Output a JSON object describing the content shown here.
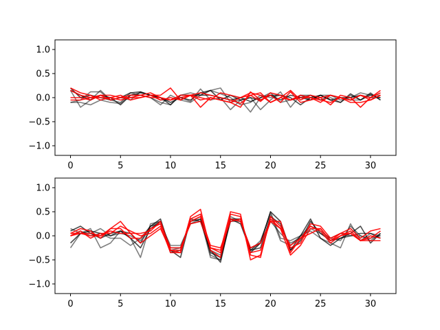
{
  "chart_data": [
    {
      "type": "line",
      "xlim": [
        -1.55,
        32.55
      ],
      "ylim": [
        -1.2,
        1.2
      ],
      "xticks": [
        0,
        5,
        10,
        15,
        20,
        25,
        30
      ],
      "yticks": [
        -1.0,
        -0.5,
        0.0,
        0.5,
        1.0
      ],
      "xtick_labels": [
        "0",
        "5",
        "10",
        "15",
        "20",
        "25",
        "30"
      ],
      "ytick_labels": [
        "−1.0",
        "−0.5",
        "0.0",
        "0.5",
        "1.0"
      ],
      "grid": false,
      "series": [
        {
          "color": "#000000",
          "alpha": 0.5,
          "values": [
            0.15,
            -0.2,
            -0.05,
            0.15,
            -0.05,
            -0.1,
            0.1,
            0.05,
            0.0,
            -0.1,
            -0.15,
            0.05,
            0.1,
            0.05,
            0.15,
            0.2,
            -0.1,
            -0.05,
            -0.3,
            0.0,
            0.1,
            -0.1,
            -0.05,
            0.0,
            0.05,
            -0.05,
            0.0,
            -0.1,
            0.05,
            -0.05,
            0.1,
            -0.05
          ]
        },
        {
          "color": "#000000",
          "alpha": 0.5,
          "values": [
            -0.1,
            -0.05,
            0.12,
            0.12,
            -0.05,
            0.0,
            -0.05,
            0.12,
            0.05,
            -0.05,
            -0.05,
            0.0,
            -0.08,
            0.18,
            -0.05,
            0.0,
            -0.25,
            -0.05,
            0.0,
            -0.25,
            -0.05,
            0.12,
            -0.2,
            0.05,
            0.05,
            -0.05,
            0.05,
            -0.05,
            0.0,
            0.1,
            0.05,
            0.05
          ]
        },
        {
          "color": "#000000",
          "alpha": 0.5,
          "values": [
            -0.1,
            -0.1,
            -0.15,
            -0.05,
            -0.1,
            -0.12,
            0.05,
            0.05,
            0.0,
            -0.15,
            0.05,
            -0.05,
            -0.1,
            0.05,
            0.15,
            0.08,
            0.0,
            -0.15,
            -0.1,
            0.05,
            0.0,
            0.05,
            -0.05,
            0.05,
            -0.05,
            0.05,
            0.05,
            0.0,
            -0.05,
            -0.05,
            0.05,
            0.0
          ]
        },
        {
          "color": "#000000",
          "alpha": 0.7,
          "values": [
            0.2,
            0.0,
            0.05,
            0.0,
            -0.05,
            0.0,
            0.1,
            0.12,
            0.05,
            0.0,
            -0.15,
            0.05,
            0.05,
            0.05,
            0.05,
            0.0,
            -0.05,
            0.0,
            -0.08,
            0.0,
            0.05,
            -0.05,
            0.05,
            0.0,
            -0.05,
            0.05,
            -0.05,
            -0.1,
            0.08,
            -0.05,
            0.08,
            -0.05
          ]
        },
        {
          "color": "#000000",
          "alpha": 0.7,
          "values": [
            0.15,
            0.05,
            -0.05,
            0.05,
            0.0,
            -0.15,
            0.05,
            0.1,
            0.05,
            0.0,
            -0.1,
            0.0,
            -0.05,
            0.1,
            0.15,
            -0.05,
            0.05,
            -0.05,
            0.0,
            -0.05,
            0.05,
            0.05,
            0.0,
            -0.15,
            0.0,
            0.05,
            -0.05,
            0.0,
            0.0,
            0.05,
            0.0,
            0.0
          ]
        },
        {
          "color": "#ff0000",
          "alpha": 0.9,
          "values": [
            0.15,
            0.05,
            0.0,
            0.0,
            0.0,
            0.05,
            -0.05,
            0.0,
            0.05,
            0.05,
            0.2,
            -0.05,
            0.05,
            0.1,
            0.05,
            0.0,
            -0.05,
            -0.12,
            0.05,
            0.1,
            -0.1,
            0.0,
            0.15,
            -0.05,
            0.05,
            0.0,
            0.05,
            0.0,
            -0.05,
            0.05,
            0.0,
            0.15
          ]
        },
        {
          "color": "#ff0000",
          "alpha": 0.9,
          "values": [
            -0.05,
            -0.05,
            0.0,
            0.05,
            0.05,
            0.0,
            0.0,
            0.05,
            0.1,
            0.0,
            -0.05,
            0.05,
            0.05,
            -0.05,
            0.0,
            -0.05,
            -0.1,
            0.0,
            0.1,
            0.05,
            -0.1,
            0.0,
            -0.05,
            0.0,
            0.0,
            -0.1,
            0.05,
            0.0,
            -0.05,
            0.05,
            -0.05,
            0.05
          ]
        },
        {
          "color": "#ff0000",
          "alpha": 0.9,
          "values": [
            0.2,
            0.1,
            0.05,
            -0.05,
            0.0,
            -0.05,
            0.0,
            0.0,
            0.05,
            -0.05,
            0.0,
            -0.05,
            0.05,
            -0.2,
            0.0,
            -0.05,
            -0.1,
            -0.2,
            0.12,
            -0.05,
            0.05,
            -0.1,
            0.12,
            -0.1,
            -0.05,
            0.0,
            -0.15,
            0.05,
            0.0,
            -0.2,
            0.0,
            0.1
          ]
        },
        {
          "color": "#ff0000",
          "alpha": 0.9,
          "values": [
            0.0,
            0.0,
            -0.05,
            0.05,
            -0.05,
            0.0,
            0.05,
            0.05,
            0.0,
            0.0,
            -0.05,
            0.0,
            0.05,
            0.0,
            -0.05,
            0.1,
            0.05,
            0.0,
            0.05,
            -0.08,
            0.1,
            0.05,
            -0.05,
            0.05,
            0.0,
            -0.05,
            -0.1,
            0.0,
            -0.1,
            -0.1,
            -0.05,
            0.05
          ]
        }
      ]
    },
    {
      "type": "line",
      "xlim": [
        -1.55,
        32.55
      ],
      "ylim": [
        -1.2,
        1.2
      ],
      "xticks": [
        0,
        5,
        10,
        15,
        20,
        25,
        30
      ],
      "yticks": [
        -1.0,
        -0.5,
        0.0,
        0.5,
        1.0
      ],
      "xtick_labels": [
        "0",
        "5",
        "10",
        "15",
        "20",
        "25",
        "30"
      ],
      "ytick_labels": [
        "−1.0",
        "−0.5",
        "0.0",
        "0.5",
        "1.0"
      ],
      "grid": false,
      "series": [
        {
          "color": "#000000",
          "alpha": 0.5,
          "values": [
            -0.25,
            0.05,
            0.15,
            -0.25,
            -0.15,
            0.1,
            -0.05,
            -0.45,
            0.25,
            0.3,
            -0.3,
            -0.25,
            0.25,
            0.35,
            -0.45,
            -0.5,
            0.3,
            0.35,
            -0.3,
            -0.1,
            0.45,
            -0.1,
            -0.2,
            0.0,
            0.1,
            -0.05,
            -0.15,
            -0.25,
            0.25,
            -0.1,
            0.05,
            0.0
          ]
        },
        {
          "color": "#000000",
          "alpha": 0.5,
          "values": [
            0.15,
            0.05,
            0.05,
            0.15,
            0.0,
            0.05,
            0.0,
            -0.1,
            0.2,
            0.3,
            -0.25,
            -0.25,
            0.3,
            0.4,
            -0.4,
            -0.5,
            0.4,
            0.3,
            -0.3,
            -0.15,
            0.5,
            -0.05,
            -0.1,
            0.0,
            0.2,
            0.1,
            -0.05,
            -0.1,
            0.2,
            0.0,
            -0.1,
            0.05
          ]
        },
        {
          "color": "#000000",
          "alpha": 0.5,
          "values": [
            0.0,
            0.1,
            0.0,
            0.05,
            -0.05,
            -0.05,
            -0.2,
            -0.05,
            0.2,
            0.25,
            -0.2,
            -0.2,
            0.25,
            0.3,
            -0.3,
            -0.4,
            0.3,
            0.3,
            -0.25,
            -0.15,
            0.3,
            0.05,
            -0.15,
            -0.05,
            0.15,
            0.05,
            -0.05,
            0.05,
            0.0,
            0.0,
            -0.05,
            0.0
          ]
        },
        {
          "color": "#000000",
          "alpha": 0.7,
          "values": [
            -0.15,
            0.05,
            0.1,
            0.05,
            0.0,
            0.1,
            0.05,
            -0.15,
            0.2,
            0.35,
            -0.3,
            -0.45,
            0.35,
            0.3,
            -0.3,
            -0.55,
            0.35,
            0.35,
            -0.35,
            -0.15,
            0.5,
            0.3,
            -0.3,
            0.0,
            0.35,
            -0.05,
            -0.2,
            -0.05,
            0.05,
            0.2,
            -0.15,
            0.05
          ]
        },
        {
          "color": "#000000",
          "alpha": 0.7,
          "values": [
            0.1,
            0.2,
            0.05,
            -0.05,
            0.05,
            0.1,
            -0.05,
            -0.25,
            0.15,
            0.3,
            -0.35,
            -0.3,
            0.3,
            0.35,
            -0.35,
            -0.45,
            0.35,
            0.25,
            -0.3,
            -0.25,
            0.4,
            0.25,
            -0.3,
            -0.1,
            0.3,
            0.05,
            -0.1,
            -0.05,
            0.0,
            0.05,
            0.05,
            -0.05
          ]
        },
        {
          "color": "#ff0000",
          "alpha": 0.9,
          "values": [
            0.05,
            0.15,
            0.1,
            -0.05,
            0.15,
            0.3,
            0.05,
            0.05,
            0.1,
            0.3,
            -0.3,
            -0.35,
            0.4,
            0.55,
            -0.3,
            -0.45,
            0.45,
            0.4,
            -0.4,
            -0.45,
            0.4,
            0.2,
            -0.25,
            -0.15,
            0.25,
            0.2,
            -0.05,
            0.05,
            0.15,
            -0.05,
            0.1,
            0.15
          ]
        },
        {
          "color": "#ff0000",
          "alpha": 0.9,
          "values": [
            0.0,
            0.1,
            -0.05,
            0.05,
            0.05,
            0.2,
            0.1,
            0.0,
            0.05,
            0.2,
            -0.35,
            -0.35,
            0.35,
            0.45,
            -0.25,
            -0.3,
            0.5,
            0.45,
            -0.5,
            -0.4,
            0.35,
            0.15,
            -0.4,
            -0.2,
            0.15,
            0.15,
            -0.1,
            0.0,
            0.1,
            -0.1,
            0.0,
            -0.05
          ]
        },
        {
          "color": "#ff0000",
          "alpha": 0.9,
          "values": [
            0.05,
            0.05,
            0.05,
            0.0,
            0.15,
            0.15,
            -0.05,
            -0.05,
            0.15,
            0.25,
            -0.25,
            -0.25,
            0.25,
            0.3,
            -0.25,
            -0.35,
            0.35,
            0.3,
            -0.25,
            -0.15,
            0.3,
            0.15,
            -0.2,
            -0.05,
            0.2,
            0.1,
            -0.15,
            0.0,
            0.05,
            -0.1,
            -0.1,
            -0.1
          ]
        },
        {
          "color": "#ff0000",
          "alpha": 0.9,
          "values": [
            0.0,
            0.05,
            0.0,
            0.0,
            0.1,
            0.05,
            0.05,
            -0.15,
            0.0,
            0.15,
            -0.3,
            -0.3,
            0.3,
            0.4,
            -0.2,
            -0.25,
            0.3,
            0.35,
            -0.35,
            -0.3,
            0.3,
            0.3,
            -0.35,
            -0.05,
            0.05,
            0.15,
            -0.1,
            0.05,
            0.05,
            -0.1,
            -0.05,
            0.1
          ]
        }
      ]
    }
  ]
}
